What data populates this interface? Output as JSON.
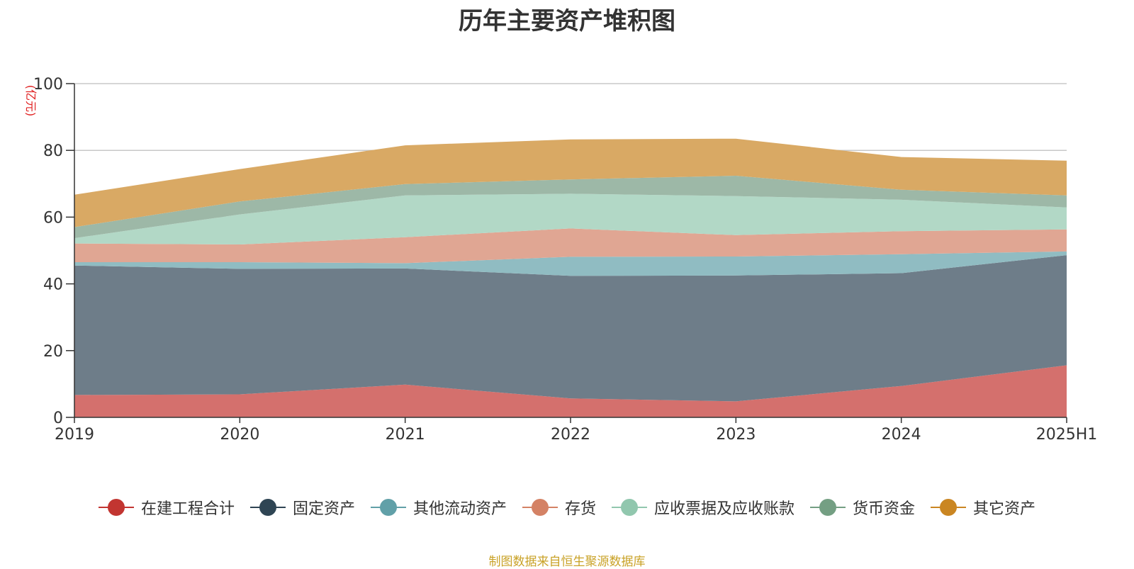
{
  "title": "历年主要资产堆积图",
  "source_note": "制图数据来自恒生聚源数据库",
  "chart_data": {
    "type": "area",
    "stacked": true,
    "title": "历年主要资产堆积图",
    "ylabel": "(亿元)",
    "xlabel": "",
    "ylim": [
      0,
      100
    ],
    "yticks": [
      0,
      20,
      40,
      60,
      80,
      100
    ],
    "categories": [
      "2019",
      "2020",
      "2021",
      "2022",
      "2023",
      "2024",
      "2025H1"
    ],
    "grid": true,
    "legend_position": "bottom",
    "series": [
      {
        "name": "在建工程合计",
        "color": "#c23531",
        "fill": "#d4706d",
        "values": [
          6.7,
          6.9,
          9.8,
          5.7,
          4.8,
          9.4,
          15.6
        ]
      },
      {
        "name": "固定资产",
        "color": "#2f4554",
        "fill": "#6e7d89",
        "values": [
          38.8,
          37.6,
          34.8,
          36.7,
          37.7,
          33.8,
          33.0
        ]
      },
      {
        "name": "其他流动资产",
        "color": "#61a0a8",
        "fill": "#90bcc2",
        "values": [
          1.0,
          2.0,
          1.6,
          5.7,
          5.7,
          5.7,
          1.1
        ]
      },
      {
        "name": "存货",
        "color": "#d48265",
        "fill": "#e0a693",
        "values": [
          5.6,
          5.3,
          7.8,
          8.5,
          6.4,
          6.9,
          6.6
        ]
      },
      {
        "name": "应收票据及应收账款",
        "color": "#91c7ae",
        "fill": "#b2d8c6",
        "values": [
          1.6,
          9.0,
          12.5,
          10.4,
          11.7,
          9.4,
          6.6
        ]
      },
      {
        "name": "货币资金",
        "color": "#749f83",
        "fill": "#9db8a7",
        "values": [
          3.3,
          3.9,
          3.4,
          4.3,
          6.1,
          3.0,
          3.6
        ]
      },
      {
        "name": "其它资产",
        "color": "#ca8622",
        "fill": "#d9a964",
        "values": [
          9.7,
          9.7,
          11.6,
          12.0,
          11.1,
          9.8,
          10.4
        ]
      }
    ]
  }
}
